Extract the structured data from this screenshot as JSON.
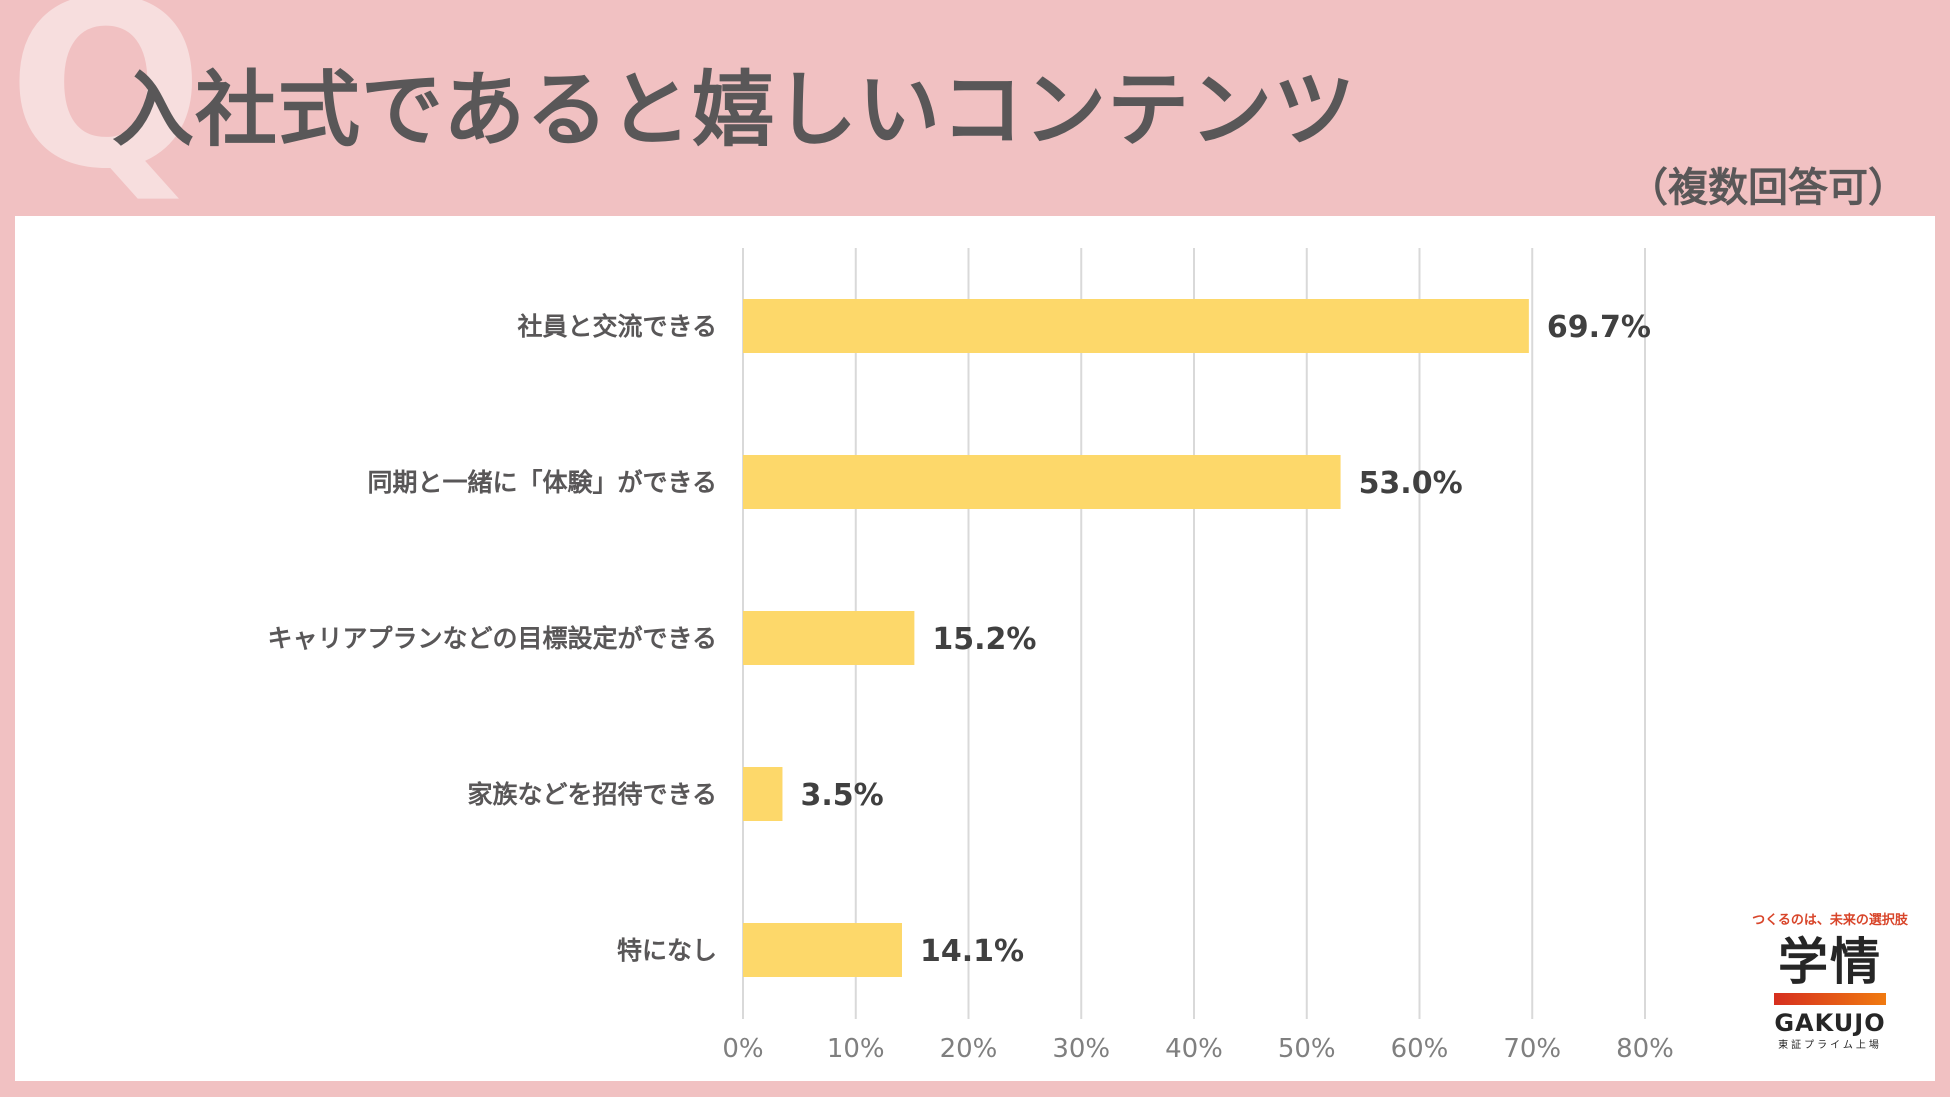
{
  "header": {
    "q_mark": "Q",
    "title": "入社式であると嬉しいコンテンツ",
    "subtitle": "（複数回答可）"
  },
  "colors": {
    "background": "#f1c1c2",
    "bar": "#fdd86a",
    "grid": "#d9d9d9",
    "title": "#595758"
  },
  "chart_data": {
    "type": "bar",
    "orientation": "horizontal",
    "title": "入社式であると嬉しいコンテンツ",
    "categories": [
      "社員と交流できる",
      "同期と一緒に「体験」ができる",
      "キャリアプランなどの目標設定ができる",
      "家族などを招待できる",
      "特になし"
    ],
    "values": [
      69.7,
      53.0,
      15.2,
      3.5,
      14.1
    ],
    "value_labels": [
      "69.7%",
      "53.0%",
      "15.2%",
      "3.5%",
      "14.1%"
    ],
    "xlim": [
      0,
      80
    ],
    "ticks": [
      0,
      10,
      20,
      30,
      40,
      50,
      60,
      70,
      80
    ],
    "tick_labels": [
      "0%",
      "10%",
      "20%",
      "30%",
      "40%",
      "50%",
      "60%",
      "70%",
      "80%"
    ],
    "grid": true,
    "xlabel": "",
    "ylabel": ""
  },
  "logo": {
    "tagline": "つくるのは、未来の選択肢",
    "kanji": "学情",
    "name": "GAKUJO",
    "listing": "東証プライム上場"
  }
}
